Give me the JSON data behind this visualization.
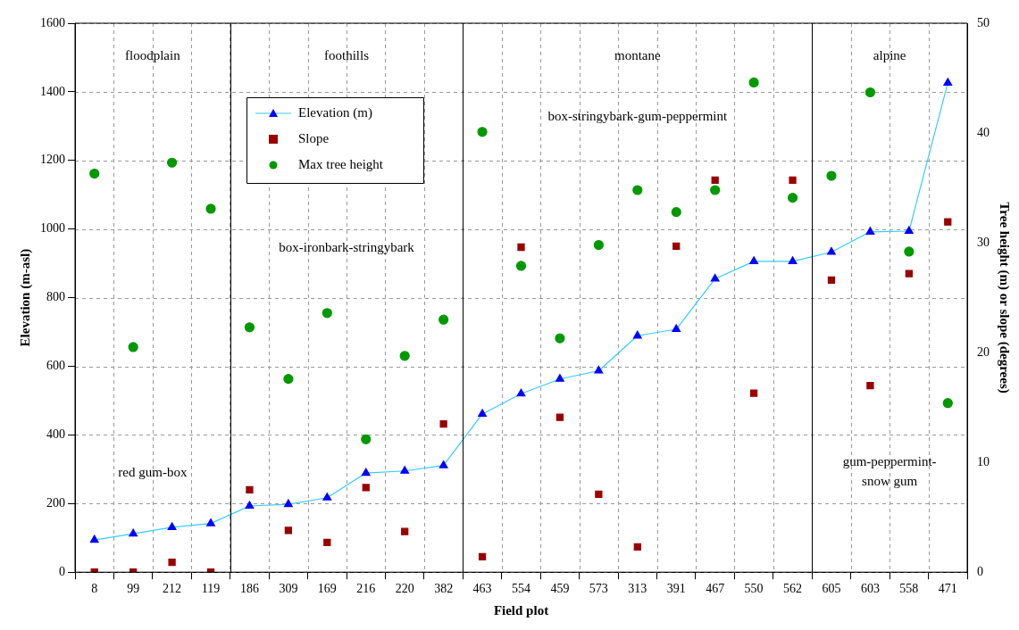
{
  "chart_data": {
    "type": "line",
    "xlabel": "Field plot",
    "ylabel": "Elevation (m-asl)",
    "y2label": "Tree height (m) or slope (degrees)",
    "categories": [
      "8",
      "99",
      "212",
      "119",
      "186",
      "309",
      "169",
      "216",
      "220",
      "382",
      "463",
      "554",
      "459",
      "573",
      "313",
      "391",
      "467",
      "550",
      "562",
      "605",
      "603",
      "558",
      "471"
    ],
    "series": [
      {
        "name": "Elevation (m)",
        "type": "line",
        "color": "#33ccff",
        "colors": [
          "#0000ff",
          "#0000ff",
          "#0000ff",
          "#0000ff",
          "#0000ff",
          "#0000ff",
          "#0000ff",
          "#0000ff",
          "#0000ff",
          "#0000ff",
          "#0000ff",
          "#0000ff",
          "#0000ff",
          "#0000ff",
          "#0000ff",
          "#0000ff",
          "#0000ff",
          "#0000ff",
          "#0000ff",
          "#0000ff",
          "#0000ff",
          "#0000ff",
          "#0000ff"
        ],
        "marker": "triangle",
        "values": [
          94,
          112,
          131,
          142,
          193,
          198,
          217,
          289,
          295,
          311,
          461,
          520,
          563,
          587,
          689,
          708,
          855,
          906,
          906,
          933,
          992,
          994,
          1426
        ]
      },
      {
        "name": "Slope",
        "type": "scatter",
        "axis": "y2",
        "color": "#990000",
        "marker": "square",
        "values": [
          0,
          0,
          0.9,
          0,
          7.5,
          3.8,
          2.7,
          7.7,
          3.7,
          13.5,
          1.4,
          29.6,
          14.1,
          7.1,
          2.3,
          29.7,
          35.7,
          16.3,
          35.7,
          26.6,
          17.0,
          27.2,
          31.9
        ]
      },
      {
        "name": "Max tree height",
        "type": "scatter",
        "axis": "y2",
        "color": "#009900",
        "marker": "circle",
        "values": [
          36.3,
          20.5,
          37.3,
          33.1,
          22.3,
          17.6,
          23.6,
          12.1,
          19.7,
          23.0,
          40.1,
          27.9,
          21.3,
          29.8,
          34.8,
          32.8,
          34.8,
          44.6,
          34.1,
          36.1,
          43.7,
          29.2,
          15.4
        ]
      }
    ],
    "ylim": [
      0,
      1600
    ],
    "yticks": [
      0,
      200,
      400,
      600,
      800,
      1000,
      1200,
      1400,
      1600
    ],
    "y2lim": [
      0,
      50
    ],
    "y2ticks": [
      0,
      10,
      20,
      30,
      40,
      50
    ],
    "bands": [
      {
        "axis": "x",
        "from": "8",
        "to": "119",
        "label": "floodplain",
        "color": "#ffffff"
      },
      {
        "axis": "x",
        "from": "186",
        "to": "382",
        "label": "foothills",
        "color": "#ffffff"
      },
      {
        "axis": "x",
        "from": "463",
        "to": "562",
        "label": "montane",
        "color": "#ffffff"
      },
      {
        "axis": "x",
        "from": "605",
        "to": "471",
        "label": "alpine",
        "color": "#ffffff"
      }
    ],
    "annotations": [
      "red gum-box",
      "box-ironbark-stringybark",
      "box-stringybark-gum-peppermint",
      "gum-peppermint-\nsnow gum"
    ],
    "grid": true,
    "legend": "top left"
  }
}
